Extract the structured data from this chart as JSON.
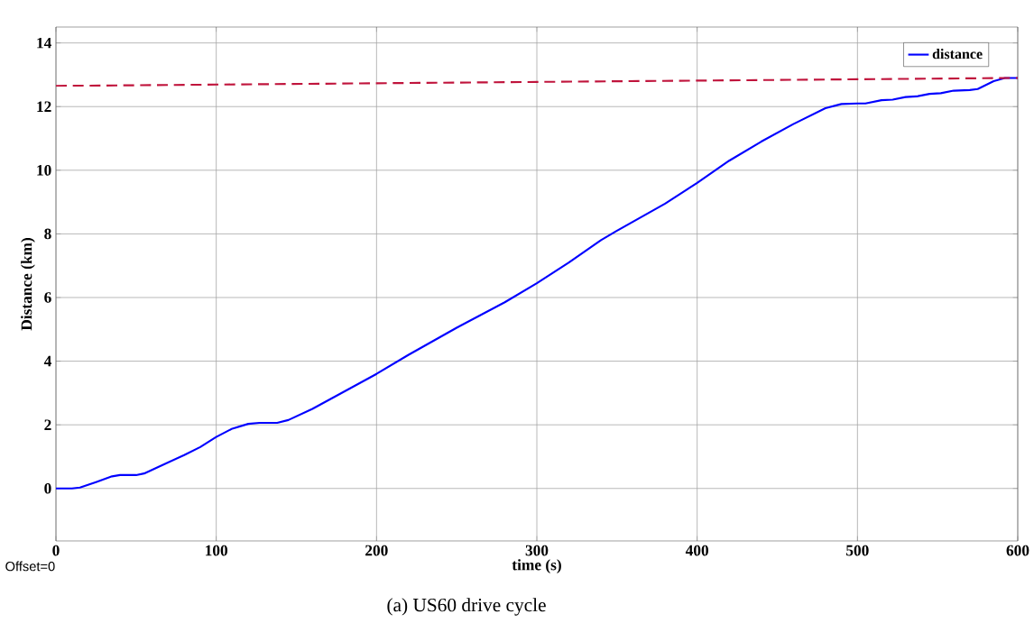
{
  "chart_data": {
    "type": "line",
    "xlabel": "time (s)",
    "ylabel": "Distance (km)",
    "annotations": [
      "Offset=0",
      "(a) US60 drive cycle"
    ],
    "xlim": [
      0,
      600
    ],
    "ylim": [
      -1.65,
      14.5
    ],
    "xticks": [
      0,
      100,
      200,
      300,
      400,
      500,
      600
    ],
    "yticks": [
      0,
      2,
      4,
      6,
      8,
      10,
      12,
      14
    ],
    "grid": true,
    "legend": "top right",
    "line_style": "solid",
    "series": [
      {
        "name": "distance",
        "color": "#0000ff",
        "x": [
          0,
          10,
          15,
          25,
          35,
          40,
          50,
          55,
          65,
          80,
          90,
          100,
          110,
          120,
          127,
          138,
          145,
          160,
          180,
          200,
          220,
          250,
          280,
          300,
          320,
          340,
          350,
          380,
          400,
          420,
          440,
          460,
          480,
          490,
          500,
          505,
          515,
          522,
          530,
          537,
          545,
          552,
          560,
          570,
          575,
          585,
          592,
          600
        ],
        "values": [
          0,
          0,
          0.03,
          0.2,
          0.38,
          0.42,
          0.42,
          0.47,
          0.7,
          1.05,
          1.3,
          1.62,
          1.88,
          2.03,
          2.06,
          2.06,
          2.15,
          2.5,
          3.05,
          3.6,
          4.2,
          5.05,
          5.85,
          6.45,
          7.1,
          7.8,
          8.1,
          8.95,
          9.6,
          10.3,
          10.9,
          11.45,
          11.95,
          12.08,
          12.1,
          12.1,
          12.2,
          12.22,
          12.3,
          12.32,
          12.4,
          12.42,
          12.5,
          12.52,
          12.55,
          12.8,
          12.9,
          12.9
        ]
      },
      {
        "color": "#c0143c",
        "line_style": "dashed",
        "x": [
          0,
          600
        ],
        "values": [
          12.65,
          12.9
        ]
      }
    ]
  }
}
